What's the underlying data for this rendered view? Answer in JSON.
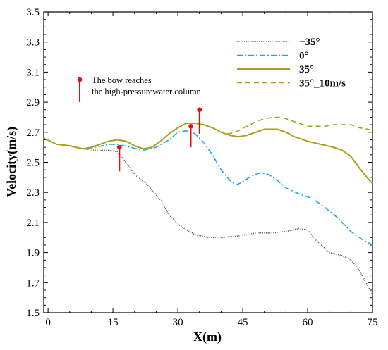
{
  "chart_data": {
    "type": "line",
    "title": "",
    "xlabel": "X(m)",
    "ylabel": "Velocity(m/s)",
    "xlim": [
      -1,
      75
    ],
    "ylim": [
      1.5,
      3.5
    ],
    "xticks": [
      0,
      15,
      30,
      45,
      60,
      75
    ],
    "yticks": [
      1.5,
      1.7,
      1.9,
      2.1,
      2.3,
      2.5,
      2.7,
      2.9,
      3.1,
      3.3,
      3.5
    ],
    "grid": false,
    "legend_position": "top-right",
    "series": [
      {
        "name": "−35°",
        "color": "#555555",
        "style": "dotted",
        "points": [
          [
            -1,
            2.66
          ],
          [
            2,
            2.62
          ],
          [
            5,
            2.61
          ],
          [
            8,
            2.59
          ],
          [
            11,
            2.58
          ],
          [
            14,
            2.58
          ],
          [
            16,
            2.57
          ],
          [
            18,
            2.5
          ],
          [
            20,
            2.42
          ],
          [
            23,
            2.35
          ],
          [
            26,
            2.25
          ],
          [
            28,
            2.15
          ],
          [
            30,
            2.09
          ],
          [
            32,
            2.05
          ],
          [
            34,
            2.02
          ],
          [
            37,
            2.0
          ],
          [
            40,
            2.0
          ],
          [
            44,
            2.01
          ],
          [
            48,
            2.03
          ],
          [
            52,
            2.03
          ],
          [
            55,
            2.04
          ],
          [
            58,
            2.06
          ],
          [
            60,
            2.05
          ],
          [
            62,
            1.98
          ],
          [
            65,
            1.9
          ],
          [
            68,
            1.88
          ],
          [
            70,
            1.85
          ],
          [
            72,
            1.78
          ],
          [
            73.5,
            1.7
          ],
          [
            75,
            1.62
          ]
        ]
      },
      {
        "name": "0°",
        "color": "#1fa8e0",
        "style": "dashdot",
        "points": [
          [
            -1,
            2.66
          ],
          [
            2,
            2.62
          ],
          [
            5,
            2.61
          ],
          [
            8,
            2.59
          ],
          [
            11,
            2.6
          ],
          [
            14,
            2.62
          ],
          [
            16,
            2.62
          ],
          [
            19,
            2.6
          ],
          [
            22,
            2.58
          ],
          [
            25,
            2.6
          ],
          [
            28,
            2.65
          ],
          [
            30,
            2.7
          ],
          [
            32,
            2.71
          ],
          [
            34,
            2.69
          ],
          [
            36,
            2.63
          ],
          [
            38,
            2.55
          ],
          [
            40,
            2.45
          ],
          [
            42,
            2.38
          ],
          [
            43.5,
            2.35
          ],
          [
            45,
            2.37
          ],
          [
            47,
            2.41
          ],
          [
            49,
            2.43
          ],
          [
            51,
            2.42
          ],
          [
            53,
            2.38
          ],
          [
            55,
            2.33
          ],
          [
            58,
            2.29
          ],
          [
            61,
            2.26
          ],
          [
            64,
            2.2
          ],
          [
            67,
            2.13
          ],
          [
            70,
            2.04
          ],
          [
            73,
            1.98
          ],
          [
            75,
            1.95
          ]
        ]
      },
      {
        "name": "35°",
        "color": "#a8a020",
        "style": "solid",
        "points": [
          [
            -1,
            2.66
          ],
          [
            2,
            2.62
          ],
          [
            5,
            2.61
          ],
          [
            8,
            2.59
          ],
          [
            10,
            2.6
          ],
          [
            12,
            2.62
          ],
          [
            14,
            2.64
          ],
          [
            16,
            2.65
          ],
          [
            18,
            2.64
          ],
          [
            20,
            2.61
          ],
          [
            22,
            2.59
          ],
          [
            24,
            2.6
          ],
          [
            26,
            2.64
          ],
          [
            28,
            2.69
          ],
          [
            30,
            2.73
          ],
          [
            32,
            2.76
          ],
          [
            34,
            2.76
          ],
          [
            36,
            2.75
          ],
          [
            38,
            2.73
          ],
          [
            40,
            2.7
          ],
          [
            42,
            2.68
          ],
          [
            44,
            2.67
          ],
          [
            46,
            2.68
          ],
          [
            48,
            2.7
          ],
          [
            50,
            2.72
          ],
          [
            53,
            2.72
          ],
          [
            55,
            2.7
          ],
          [
            57,
            2.67
          ],
          [
            60,
            2.64
          ],
          [
            63,
            2.62
          ],
          [
            66,
            2.6
          ],
          [
            68,
            2.58
          ],
          [
            70,
            2.54
          ],
          [
            72,
            2.46
          ],
          [
            74,
            2.39
          ],
          [
            75,
            2.36
          ]
        ]
      },
      {
        "name": "35°_10m/s",
        "color": "#a8a020",
        "style": "dashed",
        "points": [
          [
            36,
            2.75
          ],
          [
            38,
            2.73
          ],
          [
            40,
            2.7
          ],
          [
            42,
            2.69
          ],
          [
            44,
            2.71
          ],
          [
            46,
            2.74
          ],
          [
            48,
            2.77
          ],
          [
            50,
            2.79
          ],
          [
            52,
            2.8
          ],
          [
            54,
            2.8
          ],
          [
            56,
            2.78
          ],
          [
            58,
            2.76
          ],
          [
            60,
            2.74
          ],
          [
            62,
            2.74
          ],
          [
            64,
            2.74
          ],
          [
            66,
            2.75
          ],
          [
            68,
            2.75
          ],
          [
            70,
            2.75
          ],
          [
            72,
            2.73
          ],
          [
            74,
            2.72
          ],
          [
            75,
            2.71
          ]
        ]
      }
    ],
    "markers": [
      {
        "x": 16.5,
        "y": 2.6,
        "y_end": 2.44,
        "color": "#e01010"
      },
      {
        "x": 33,
        "y": 2.74,
        "y_end": 2.6,
        "color": "#e01010"
      },
      {
        "x": 35,
        "y": 2.85,
        "y_end": 2.69,
        "color": "#e01010"
      }
    ],
    "annotation": {
      "line1": "The bow reaches",
      "line2": "the high-pressurewater column"
    }
  }
}
